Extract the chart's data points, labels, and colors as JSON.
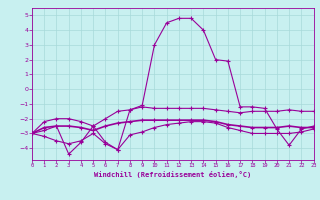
{
  "xlabel": "Windchill (Refroidissement éolien,°C)",
  "background_color": "#c8f0f0",
  "grid_color": "#a8dada",
  "line_color": "#990099",
  "xlim": [
    0,
    23
  ],
  "ylim": [
    -4.8,
    5.5
  ],
  "xticks": [
    0,
    1,
    2,
    3,
    4,
    5,
    6,
    7,
    8,
    9,
    10,
    11,
    12,
    13,
    14,
    15,
    16,
    17,
    18,
    19,
    20,
    21,
    22,
    23
  ],
  "yticks": [
    -4,
    -3,
    -2,
    -1,
    0,
    1,
    2,
    3,
    4,
    5
  ],
  "curve1_x": [
    0,
    1,
    2,
    3,
    4,
    5,
    6,
    7,
    8,
    9,
    10,
    11,
    12,
    13,
    14,
    15,
    16,
    17,
    18,
    19,
    20,
    21,
    22,
    23
  ],
  "curve1_y": [
    -3.0,
    -2.2,
    -2.0,
    -2.0,
    -2.2,
    -2.5,
    -2.0,
    -1.5,
    -1.4,
    -1.2,
    -1.3,
    -1.3,
    -1.3,
    -1.3,
    -1.3,
    -1.4,
    -1.5,
    -1.6,
    -1.5,
    -1.5,
    -1.5,
    -1.4,
    -1.5,
    -1.5
  ],
  "curve2_x": [
    0,
    1,
    2,
    3,
    4,
    5,
    6,
    7,
    8,
    9,
    10,
    11,
    12,
    13,
    14,
    15,
    16,
    17,
    18,
    19,
    20,
    21,
    22,
    23
  ],
  "curve2_y": [
    -3.0,
    -2.6,
    -2.5,
    -2.5,
    -2.6,
    -2.8,
    -2.5,
    -2.3,
    -2.2,
    -2.1,
    -2.1,
    -2.1,
    -2.1,
    -2.1,
    -2.1,
    -2.2,
    -2.4,
    -2.5,
    -2.6,
    -2.6,
    -2.6,
    -2.5,
    -2.6,
    -2.6
  ],
  "curve3_x": [
    0,
    1,
    2,
    3,
    4,
    5,
    6,
    7,
    8,
    9,
    10,
    11,
    12,
    13,
    14,
    15,
    16,
    17,
    18,
    19,
    20,
    21,
    22,
    23
  ],
  "curve3_y": [
    -3.0,
    -2.8,
    -2.5,
    -4.4,
    -3.6,
    -2.5,
    -3.6,
    -4.1,
    -1.4,
    -1.1,
    3.0,
    4.5,
    4.8,
    4.8,
    4.0,
    2.0,
    1.9,
    -1.2,
    -1.2,
    -1.3,
    -2.7,
    -3.8,
    -2.7,
    -2.5
  ],
  "curve4_x": [
    0,
    1,
    2,
    3,
    4,
    5,
    6,
    7,
    8,
    9,
    10,
    11,
    12,
    13,
    14,
    15,
    16,
    17,
    18,
    19,
    20,
    21,
    22,
    23
  ],
  "curve4_y": [
    -3.0,
    -3.2,
    -3.5,
    -3.7,
    -3.5,
    -3.0,
    -3.7,
    -4.1,
    -3.1,
    -2.9,
    -2.6,
    -2.4,
    -2.3,
    -2.2,
    -2.2,
    -2.3,
    -2.6,
    -2.8,
    -3.0,
    -3.0,
    -3.0,
    -3.0,
    -2.9,
    -2.7
  ]
}
